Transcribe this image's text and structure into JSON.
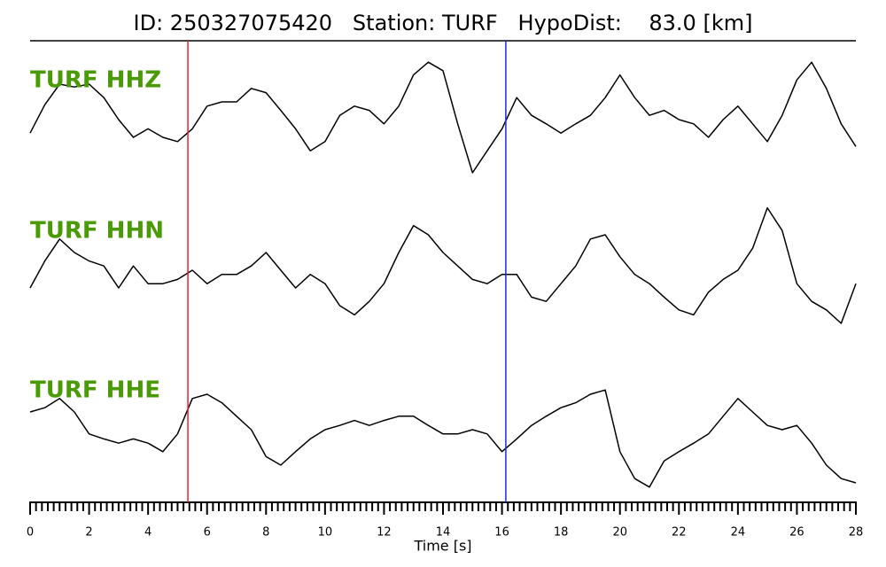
{
  "chart_data": {
    "type": "line",
    "title": "ID: 250327075420   Station: TURF   HypoDist:    83.0 [km]",
    "xlabel": "Time [s]",
    "xlim": [
      0,
      28
    ],
    "xticks": [
      0,
      2,
      4,
      6,
      8,
      10,
      12,
      14,
      16,
      18,
      20,
      22,
      24,
      26,
      28
    ],
    "xminorticks": [
      0.2,
      0.4,
      0.6,
      0.8,
      1,
      1.2,
      1.4,
      1.6,
      1.8,
      2.2,
      2.4,
      2.6,
      2.8,
      3,
      3.2,
      3.4,
      3.6,
      3.8,
      4.2,
      4.4,
      4.6,
      4.8,
      5,
      5.2,
      5.4,
      5.6,
      5.8,
      6.2,
      6.4,
      6.6,
      6.8,
      7,
      7.2,
      7.4,
      7.6,
      7.8,
      8.2,
      8.4,
      8.6,
      8.8,
      9,
      9.2,
      9.4,
      9.6,
      9.8,
      10.2,
      10.4,
      10.6,
      10.8,
      11,
      11.2,
      11.4,
      11.6,
      11.8,
      12.2,
      12.4,
      12.6,
      12.8,
      13,
      13.2,
      13.4,
      13.6,
      13.8,
      14.2,
      14.4,
      14.6,
      14.8,
      15,
      15.2,
      15.4,
      15.6,
      15.8,
      16.2,
      16.4,
      16.6,
      16.8,
      17,
      17.2,
      17.4,
      17.6,
      17.8,
      18.2,
      18.4,
      18.6,
      18.8,
      19,
      19.2,
      19.4,
      19.6,
      19.8,
      20.2,
      20.4,
      20.6,
      20.8,
      21,
      21.2,
      21.4,
      21.6,
      21.8,
      22.2,
      22.4,
      22.6,
      22.8,
      23,
      23.2,
      23.4,
      23.6,
      23.8,
      24.2,
      24.4,
      24.6,
      24.8,
      25,
      25.2,
      25.4,
      25.6,
      25.8,
      26.2,
      26.4,
      26.6,
      26.8,
      27,
      27.2,
      27.4,
      27.6,
      27.8
    ],
    "ylim": [
      -1,
      1
    ],
    "label_color": "#4a9a06",
    "picks": [
      {
        "value": 5.35,
        "color": "#e8202a"
      },
      {
        "value": 16.13,
        "color": "#1a2bd8"
      }
    ],
    "x": [
      0,
      0.5,
      1,
      1.5,
      2,
      2.5,
      3,
      3.5,
      4,
      4.5,
      5,
      5.5,
      6,
      6.5,
      7,
      7.5,
      8,
      8.5,
      9,
      9.5,
      10,
      10.5,
      11,
      11.5,
      12,
      12.5,
      13,
      13.5,
      14,
      14.5,
      15,
      15.5,
      16,
      16.5,
      17,
      17.5,
      18,
      18.5,
      19,
      19.5,
      20,
      20.5,
      21,
      21.5,
      22,
      22.5,
      23,
      23.5,
      24,
      24.5,
      25,
      25.5,
      26,
      26.5,
      27,
      27.5,
      28
    ],
    "series": [
      {
        "name": "TURF HHZ",
        "color": "#000000",
        "values": [
          -0.19,
          0.21,
          0.5,
          0.46,
          0.5,
          0.31,
          0,
          -0.25,
          -0.13,
          -0.25,
          -0.31,
          -0.13,
          0.19,
          0.25,
          0.25,
          0.44,
          0.38,
          0.13,
          -0.13,
          -0.44,
          -0.31,
          0.06,
          0.19,
          0.13,
          -0.06,
          0.19,
          0.63,
          0.81,
          0.69,
          -0.06,
          -0.75,
          -0.44,
          -0.13,
          0.31,
          0.06,
          -0.06,
          -0.19,
          -0.06,
          0.06,
          0.31,
          0.63,
          0.31,
          0.06,
          0.13,
          0,
          -0.06,
          -0.25,
          0,
          0.19,
          -0.06,
          -0.31,
          0.06,
          0.56,
          0.81,
          0.44,
          -0.06,
          -0.38
        ]
      },
      {
        "name": "TURF HHN",
        "color": "#000000",
        "values": [
          -0.25,
          0.13,
          0.44,
          0.25,
          0.13,
          0.06,
          -0.25,
          0.06,
          -0.19,
          -0.19,
          -0.13,
          0,
          -0.19,
          -0.06,
          -0.06,
          0.06,
          0.25,
          0,
          -0.25,
          -0.06,
          -0.19,
          -0.5,
          -0.63,
          -0.44,
          -0.19,
          0.25,
          0.63,
          0.5,
          0.25,
          0.06,
          -0.13,
          -0.19,
          -0.06,
          -0.06,
          -0.38,
          -0.44,
          -0.19,
          0.06,
          0.44,
          0.5,
          0.19,
          -0.06,
          -0.19,
          -0.38,
          -0.56,
          -0.63,
          -0.31,
          -0.13,
          0,
          0.31,
          0.88,
          0.56,
          -0.19,
          -0.44,
          -0.56,
          -0.75,
          -0.19
        ]
      },
      {
        "name": "TURF HHE",
        "color": "#000000",
        "values": [
          0.25,
          0.31,
          0.44,
          0.25,
          -0.06,
          -0.13,
          -0.19,
          -0.13,
          -0.19,
          -0.31,
          -0.06,
          0.44,
          0.5,
          0.38,
          0.19,
          0,
          -0.38,
          -0.5,
          -0.31,
          -0.13,
          0,
          0.06,
          0.13,
          0.06,
          0.13,
          0.19,
          0.19,
          0.06,
          -0.06,
          -0.06,
          0,
          -0.06,
          -0.31,
          -0.13,
          0.06,
          0.19,
          0.31,
          0.38,
          0.5,
          0.56,
          -0.31,
          -0.69,
          -0.81,
          -0.44,
          -0.31,
          -0.19,
          -0.06,
          0.19,
          0.44,
          0.25,
          0.06,
          0,
          0.06,
          -0.19,
          -0.5,
          -0.69,
          -0.75
        ]
      }
    ]
  }
}
